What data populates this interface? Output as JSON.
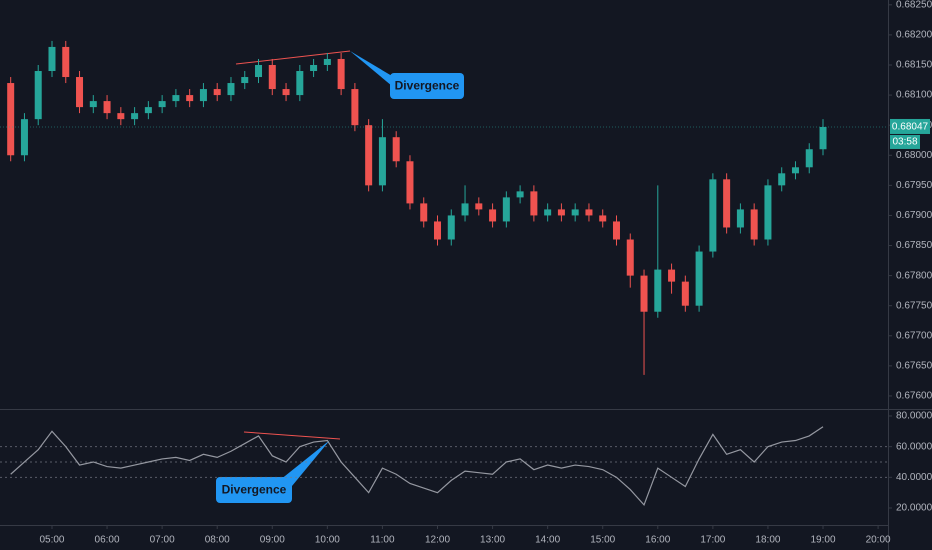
{
  "chart_data": [
    {
      "type": "candlestick",
      "x": [
        4.25,
        4.5,
        4.75,
        5.0,
        5.25,
        5.5,
        5.75,
        6.0,
        6.25,
        6.5,
        6.75,
        7.0,
        7.25,
        7.5,
        7.75,
        8.0,
        8.25,
        8.5,
        8.75,
        9.0,
        9.25,
        9.5,
        9.75,
        10.0,
        10.25,
        10.5,
        10.75,
        11.0,
        11.25,
        11.5,
        11.75,
        12.0,
        12.25,
        12.5,
        12.75,
        13.0,
        13.25,
        13.5,
        13.75,
        14.0,
        14.25,
        14.5,
        14.75,
        15.0,
        15.25,
        15.5,
        15.75,
        16.0,
        16.25,
        16.5,
        16.75,
        17.0,
        17.25,
        17.5,
        17.75,
        18.0,
        18.25,
        18.5,
        18.75,
        19.0
      ],
      "open": [
        0.6812,
        0.68,
        0.6806,
        0.6814,
        0.6818,
        0.6813,
        0.6808,
        0.6809,
        0.6807,
        0.6806,
        0.6807,
        0.6808,
        0.6809,
        0.681,
        0.6809,
        0.6811,
        0.681,
        0.6812,
        0.6813,
        0.6815,
        0.6811,
        0.681,
        0.6814,
        0.6815,
        0.6816,
        0.6811,
        0.6805,
        0.6795,
        0.6803,
        0.6799,
        0.6792,
        0.6789,
        0.6786,
        0.679,
        0.6792,
        0.6791,
        0.6789,
        0.6793,
        0.6794,
        0.679,
        0.6791,
        0.679,
        0.6791,
        0.679,
        0.6789,
        0.6786,
        0.678,
        0.6774,
        0.6781,
        0.6779,
        0.6775,
        0.6784,
        0.6796,
        0.6788,
        0.6791,
        0.6786,
        0.6795,
        0.6797,
        0.6798,
        0.6801
      ],
      "high": [
        0.6813,
        0.6807,
        0.6815,
        0.6819,
        0.6819,
        0.6814,
        0.681,
        0.681,
        0.6808,
        0.6808,
        0.6809,
        0.681,
        0.6811,
        0.6811,
        0.6812,
        0.6812,
        0.6813,
        0.6814,
        0.6816,
        0.6816,
        0.6812,
        0.6815,
        0.6816,
        0.6817,
        0.6817,
        0.6812,
        0.6806,
        0.6806,
        0.6804,
        0.68,
        0.6793,
        0.679,
        0.6791,
        0.6795,
        0.6793,
        0.6792,
        0.6794,
        0.6795,
        0.6795,
        0.6792,
        0.6792,
        0.6792,
        0.6792,
        0.6791,
        0.679,
        0.6787,
        0.6781,
        0.6795,
        0.6782,
        0.678,
        0.6785,
        0.6797,
        0.6797,
        0.6792,
        0.6792,
        0.6796,
        0.6798,
        0.6799,
        0.6802,
        0.6806
      ],
      "low": [
        0.6799,
        0.6799,
        0.6805,
        0.6813,
        0.6812,
        0.6807,
        0.6807,
        0.6806,
        0.6805,
        0.6805,
        0.6806,
        0.6807,
        0.6808,
        0.6808,
        0.6808,
        0.6809,
        0.6809,
        0.6811,
        0.6812,
        0.681,
        0.6809,
        0.6809,
        0.6813,
        0.6814,
        0.681,
        0.6804,
        0.6794,
        0.6794,
        0.6798,
        0.6791,
        0.6788,
        0.6785,
        0.6785,
        0.6789,
        0.679,
        0.6788,
        0.6788,
        0.6792,
        0.6789,
        0.6789,
        0.6789,
        0.6789,
        0.6789,
        0.6788,
        0.6785,
        0.6778,
        0.67635,
        0.6773,
        0.6777,
        0.6774,
        0.6774,
        0.6783,
        0.6787,
        0.6787,
        0.6785,
        0.6785,
        0.6794,
        0.6796,
        0.6797,
        0.68
      ],
      "close": [
        0.68,
        0.6806,
        0.6814,
        0.6818,
        0.6813,
        0.6808,
        0.6809,
        0.6807,
        0.6806,
        0.6807,
        0.6808,
        0.6809,
        0.681,
        0.6809,
        0.6811,
        0.681,
        0.6812,
        0.6813,
        0.6815,
        0.6811,
        0.681,
        0.6814,
        0.6815,
        0.6816,
        0.6811,
        0.6805,
        0.6795,
        0.6803,
        0.6799,
        0.6792,
        0.6789,
        0.6786,
        0.679,
        0.6792,
        0.6791,
        0.6789,
        0.6793,
        0.6794,
        0.679,
        0.6791,
        0.679,
        0.6791,
        0.679,
        0.6789,
        0.6786,
        0.678,
        0.6774,
        0.6781,
        0.6779,
        0.6775,
        0.6784,
        0.6796,
        0.6788,
        0.6791,
        0.6786,
        0.6795,
        0.6797,
        0.6798,
        0.6801,
        0.68047
      ],
      "up_color": "#26a69a",
      "down_color": "#ef5350",
      "xlim": [
        4.056,
        20.18
      ],
      "ylim": [
        0.6758,
        0.68258
      ],
      "yticks": [
        {
          "value": 0.6825,
          "label": "0.68250"
        },
        {
          "value": 0.682,
          "label": "0.68200"
        },
        {
          "value": 0.6815,
          "label": "0.68150"
        },
        {
          "value": 0.681,
          "label": "0.68100"
        },
        {
          "value": 0.6805,
          "label": "0.68050"
        },
        {
          "value": 0.68,
          "label": "0.68000"
        },
        {
          "value": 0.6795,
          "label": "0.67950"
        },
        {
          "value": 0.679,
          "label": "0.67900"
        },
        {
          "value": 0.6785,
          "label": "0.67850"
        },
        {
          "value": 0.678,
          "label": "0.67800"
        },
        {
          "value": 0.6775,
          "label": "0.67750"
        },
        {
          "value": 0.677,
          "label": "0.67700"
        },
        {
          "value": 0.6765,
          "label": "0.67650"
        },
        {
          "value": 0.676,
          "label": "0.67600"
        }
      ],
      "last_price": {
        "value": 0.68047,
        "label": "0.68047"
      },
      "countdown": "03:58",
      "annotations": [
        "Divergence"
      ]
    },
    {
      "type": "line",
      "x": [
        4.25,
        4.5,
        4.75,
        5.0,
        5.25,
        5.5,
        5.75,
        6.0,
        6.25,
        6.5,
        6.75,
        7.0,
        7.25,
        7.5,
        7.75,
        8.0,
        8.25,
        8.5,
        8.75,
        9.0,
        9.25,
        9.5,
        9.75,
        10.0,
        10.25,
        10.5,
        10.75,
        11.0,
        11.25,
        11.5,
        11.75,
        12.0,
        12.25,
        12.5,
        12.75,
        13.0,
        13.25,
        13.5,
        13.75,
        14.0,
        14.25,
        14.5,
        14.75,
        15.0,
        15.25,
        15.5,
        15.75,
        16.0,
        16.25,
        16.5,
        16.75,
        17.0,
        17.25,
        17.5,
        17.75,
        18.0,
        18.25,
        18.5,
        18.75,
        19.0
      ],
      "values": [
        42,
        50,
        58,
        70,
        60,
        48,
        50,
        47,
        46,
        48,
        50,
        52,
        53,
        51,
        55,
        53,
        57,
        62,
        67,
        54,
        50,
        60,
        63,
        64,
        50,
        40,
        30,
        46,
        42,
        36,
        33,
        30,
        38,
        44,
        43,
        42,
        50,
        52,
        45,
        48,
        46,
        48,
        47,
        45,
        40,
        32,
        22,
        46,
        40,
        34,
        52,
        68,
        55,
        58,
        50,
        60,
        63,
        64,
        67,
        73
      ],
      "color": "#9598a1",
      "xlim": [
        4.056,
        20.18
      ],
      "ylim": [
        8.9,
        83.9
      ],
      "yticks": [
        {
          "value": 80,
          "label": "80.00000"
        },
        {
          "value": 60,
          "label": "60.00000"
        },
        {
          "value": 40,
          "label": "40.00000"
        },
        {
          "value": 20,
          "label": "20.00000"
        }
      ],
      "levels": [
        60,
        50,
        40
      ],
      "xticks": [
        {
          "value": 5,
          "label": "05:00"
        },
        {
          "value": 6,
          "label": "06:00"
        },
        {
          "value": 7,
          "label": "07:00"
        },
        {
          "value": 8,
          "label": "08:00"
        },
        {
          "value": 9,
          "label": "09:00"
        },
        {
          "value": 10,
          "label": "10:00"
        },
        {
          "value": 11,
          "label": "11:00"
        },
        {
          "value": 12,
          "label": "12:00"
        },
        {
          "value": 13,
          "label": "13:00"
        },
        {
          "value": 14,
          "label": "14:00"
        },
        {
          "value": 15,
          "label": "15:00"
        },
        {
          "value": 16,
          "label": "16:00"
        },
        {
          "value": 17,
          "label": "17:00"
        },
        {
          "value": 18,
          "label": "18:00"
        },
        {
          "value": 19,
          "label": "19:00"
        },
        {
          "value": 20,
          "label": "20:00"
        }
      ],
      "annotations": [
        "Divergence"
      ]
    }
  ]
}
